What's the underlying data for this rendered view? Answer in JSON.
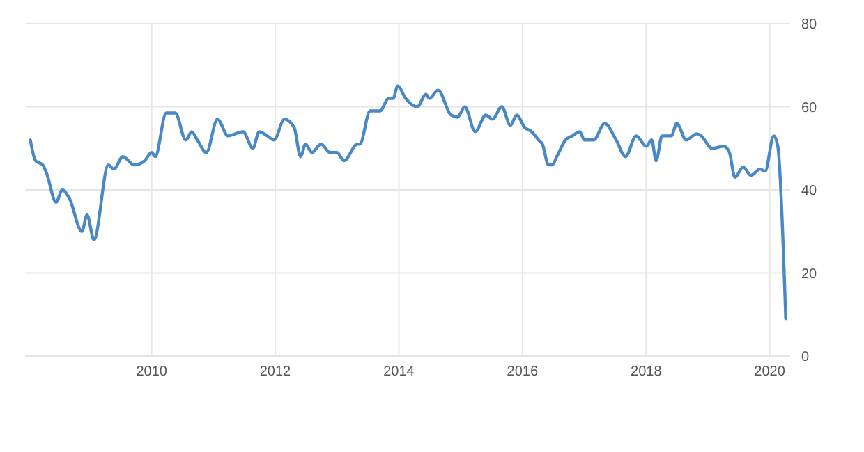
{
  "chart_data": {
    "type": "line",
    "x": [
      "2008-01-15",
      "2008-02-15",
      "2008-03-28",
      "2008-04-20",
      "2008-06-15",
      "2008-07-22",
      "2008-09-01",
      "2008-11-15",
      "2008-12-15",
      "2009-01-25",
      "2009-04-20",
      "2009-05-22",
      "2009-07-15",
      "2009-09-20",
      "2009-11-20",
      "2010-01-01",
      "2010-01-22",
      "2010-03-28",
      "2010-05-20",
      "2010-07-22",
      "2010-08-25",
      "2010-09-28",
      "2010-11-20",
      "2011-01-25",
      "2011-03-28",
      "2011-06-25",
      "2011-08-22",
      "2011-09-28",
      "2011-11-15",
      "2011-12-25",
      "2012-02-25",
      "2012-04-22",
      "2012-05-30",
      "2012-06-28",
      "2012-08-05",
      "2012-09-28",
      "2012-11-20",
      "2013-01-01",
      "2013-02-10",
      "2013-05-01",
      "2013-05-15",
      "2013-07-15",
      "2013-09-12",
      "2013-11-01",
      "2013-11-28",
      "2013-12-25",
      "2014-02-10",
      "2014-04-20",
      "2014-06-10",
      "2014-07-01",
      "2014-08-20",
      "2014-11-05",
      "2014-12-15",
      "2015-01-25",
      "2015-03-28",
      "2015-05-30",
      "2015-07-08",
      "2015-09-01",
      "2015-10-22",
      "2015-11-28",
      "2016-01-15",
      "2016-02-25",
      "2016-04-05",
      "2016-04-28",
      "2016-06-03",
      "2016-06-25",
      "2016-07-22",
      "2016-09-12",
      "2016-10-22",
      "2016-12-05",
      "2017-01-01",
      "2017-02-25",
      "2017-05-01",
      "2017-07-08",
      "2017-09-01",
      "2017-11-03",
      "2018-01-01",
      "2018-02-03",
      "2018-03-01",
      "2018-04-05",
      "2018-05-30",
      "2018-07-01",
      "2018-08-25",
      "2018-10-28",
      "2018-11-22",
      "2019-01-25",
      "2019-04-05",
      "2019-05-08",
      "2019-06-10",
      "2019-07-28",
      "2019-09-12",
      "2019-11-05",
      "2019-12-05",
      "2020-01-25",
      "2020-02-18",
      "2020-04-05"
    ],
    "series": [
      {
        "color": "#4a87c5",
        "values": [
          52,
          47,
          46,
          44,
          37,
          40,
          38,
          30,
          34,
          28,
          46,
          45,
          48,
          46,
          47,
          49,
          48,
          58.5,
          58.5,
          52,
          54,
          52,
          49,
          57,
          53,
          54,
          50,
          54,
          53,
          52,
          57,
          55,
          48,
          51,
          49,
          51,
          49,
          49,
          47,
          51,
          51,
          59,
          59,
          62,
          62,
          65,
          62,
          60,
          63,
          62,
          64,
          58,
          57.5,
          60,
          54,
          58,
          57,
          60,
          55.5,
          58,
          55,
          54,
          52,
          51,
          46,
          46,
          48,
          52,
          53,
          54,
          52,
          52,
          56,
          52,
          48,
          53,
          50.5,
          52,
          47,
          53,
          53,
          56,
          52,
          53.5,
          53,
          50,
          50.5,
          49,
          43,
          45.5,
          43.5,
          45,
          44.5,
          53,
          50.5,
          9
        ]
      }
    ],
    "xlim": [
      "2007-12-15",
      "2020-05-01"
    ],
    "xticks": [
      {
        "value": "2010-01-01",
        "label": "2010"
      },
      {
        "value": "2012-01-01",
        "label": "2012"
      },
      {
        "value": "2014-01-01",
        "label": "2014"
      },
      {
        "value": "2016-01-01",
        "label": "2016"
      },
      {
        "value": "2018-01-01",
        "label": "2018"
      },
      {
        "value": "2020-01-01",
        "label": "2020"
      }
    ],
    "ylim": [
      0,
      80
    ],
    "yticks": [
      0,
      20,
      40,
      60,
      80
    ],
    "grid": true,
    "marker": "none",
    "line_style": "solid"
  }
}
